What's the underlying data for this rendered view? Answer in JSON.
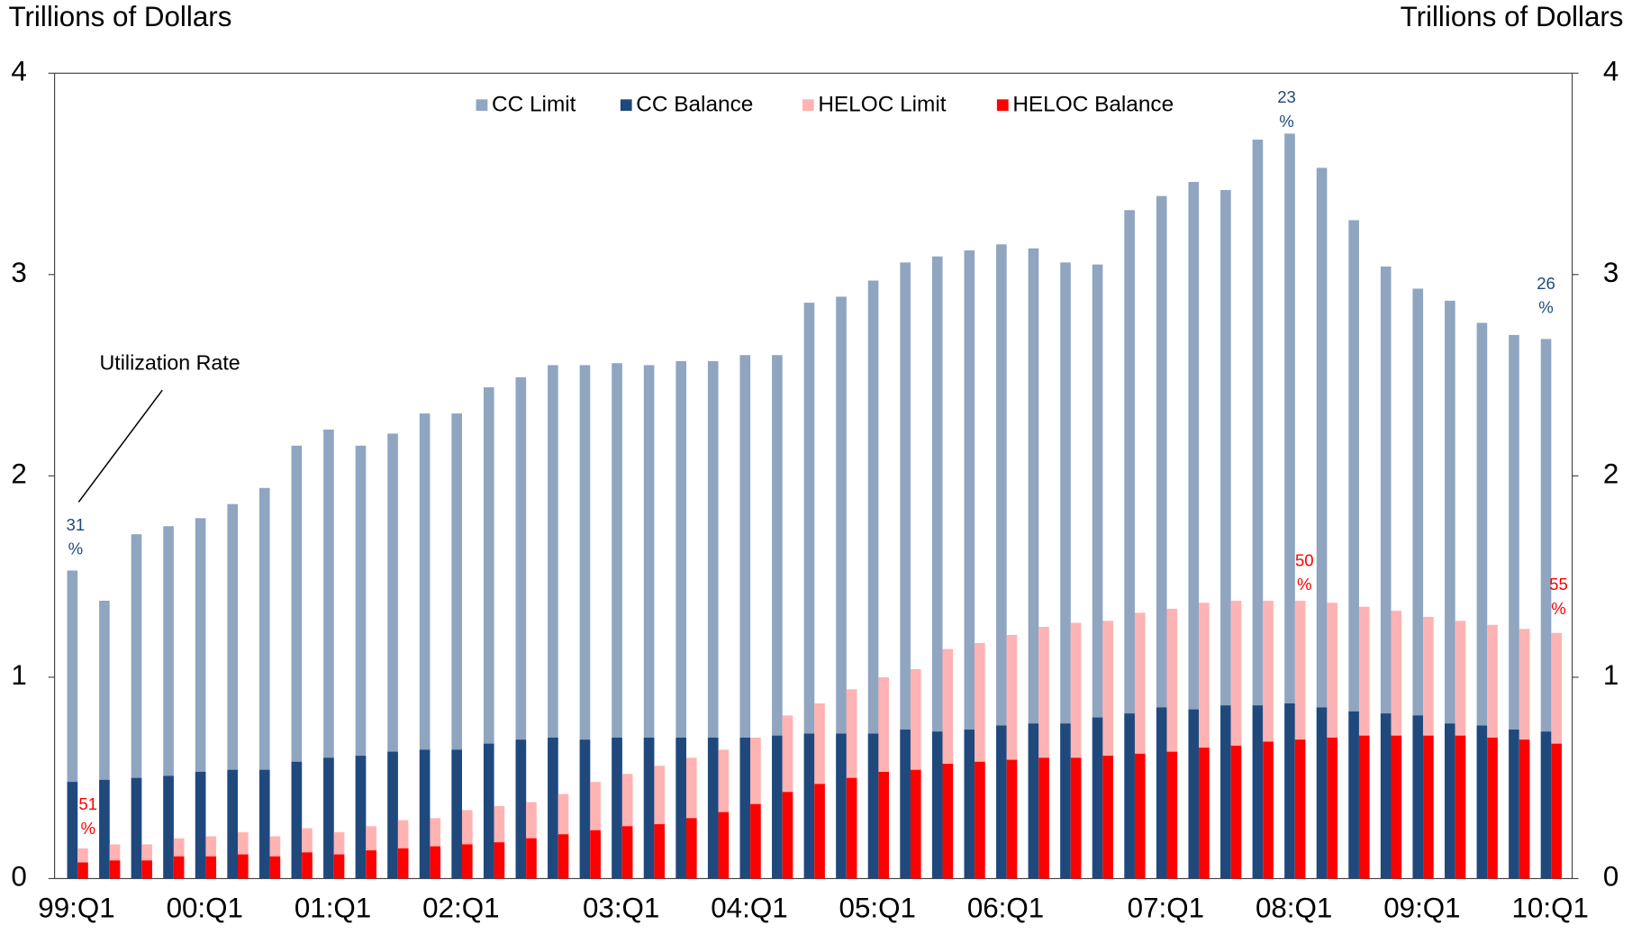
{
  "chart_data": {
    "type": "bar",
    "y_axis_label": "Trillions of Dollars",
    "y2_axis_label": "Trillions of Dollars",
    "categories": [
      "99:Q1",
      null,
      null,
      null,
      "00:Q1",
      null,
      null,
      null,
      "01:Q1",
      null,
      null,
      null,
      "02:Q1",
      null,
      null,
      null,
      null,
      "03:Q1",
      null,
      null,
      null,
      "04:Q1",
      null,
      null,
      null,
      "05:Q1",
      null,
      null,
      null,
      "06:Q1",
      null,
      null,
      null,
      null,
      "07:Q1",
      null,
      null,
      null,
      "08:Q1",
      null,
      null,
      null,
      "09:Q1",
      null,
      null,
      null,
      "10:Q1"
    ],
    "series": [
      {
        "name": "CC Limit",
        "color": "#8fa5c0",
        "values": [
          1.53,
          1.38,
          1.71,
          1.75,
          1.79,
          1.86,
          1.94,
          2.15,
          2.23,
          2.15,
          2.21,
          2.31,
          2.31,
          2.44,
          2.49,
          2.55,
          2.55,
          2.56,
          2.55,
          2.57,
          2.57,
          2.6,
          2.6,
          2.86,
          2.89,
          2.97,
          3.06,
          3.09,
          3.12,
          3.15,
          3.13,
          3.06,
          3.05,
          3.32,
          3.39,
          3.46,
          3.42,
          3.67,
          3.7,
          3.53,
          3.27,
          3.04,
          2.93,
          2.87,
          2.76,
          2.7,
          2.68
        ]
      },
      {
        "name": "CC Balance",
        "color": "#1f497d",
        "values": [
          0.48,
          0.49,
          0.5,
          0.51,
          0.53,
          0.54,
          0.54,
          0.58,
          0.6,
          0.61,
          0.63,
          0.64,
          0.64,
          0.67,
          0.69,
          0.7,
          0.69,
          0.7,
          0.7,
          0.7,
          0.7,
          0.7,
          0.71,
          0.72,
          0.72,
          0.72,
          0.74,
          0.73,
          0.74,
          0.76,
          0.77,
          0.77,
          0.8,
          0.82,
          0.85,
          0.84,
          0.86,
          0.86,
          0.87,
          0.85,
          0.83,
          0.82,
          0.81,
          0.77,
          0.76,
          0.74,
          0.73
        ]
      },
      {
        "name": "HELOC Limit",
        "color": "#ffb3b3",
        "values": [
          0.15,
          0.17,
          0.17,
          0.2,
          0.21,
          0.23,
          0.21,
          0.25,
          0.23,
          0.26,
          0.29,
          0.3,
          0.34,
          0.36,
          0.38,
          0.42,
          0.48,
          0.52,
          0.56,
          0.6,
          0.64,
          0.7,
          0.81,
          0.87,
          0.94,
          1.0,
          1.04,
          1.14,
          1.17,
          1.21,
          1.25,
          1.27,
          1.28,
          1.32,
          1.34,
          1.37,
          1.38,
          1.38,
          1.38,
          1.37,
          1.35,
          1.33,
          1.3,
          1.28,
          1.26,
          1.24,
          1.22
        ]
      },
      {
        "name": "HELOC Balance",
        "color": "#ff0000",
        "values": [
          0.08,
          0.09,
          0.09,
          0.11,
          0.11,
          0.12,
          0.11,
          0.13,
          0.12,
          0.14,
          0.15,
          0.16,
          0.17,
          0.18,
          0.2,
          0.22,
          0.24,
          0.26,
          0.27,
          0.3,
          0.33,
          0.37,
          0.43,
          0.47,
          0.5,
          0.53,
          0.54,
          0.57,
          0.58,
          0.59,
          0.6,
          0.6,
          0.61,
          0.62,
          0.63,
          0.65,
          0.66,
          0.68,
          0.69,
          0.7,
          0.71,
          0.71,
          0.71,
          0.71,
          0.7,
          0.69,
          0.67
        ]
      }
    ],
    "ylim": [
      0,
      4
    ],
    "yticks": [
      0,
      1,
      2,
      3,
      4
    ],
    "y2lim": [
      0,
      4
    ],
    "y2ticks": [
      0,
      1,
      2,
      3,
      4
    ],
    "legend": "top",
    "annotations": [
      {
        "lines": [
          "31",
          "%"
        ],
        "color": "#1f497d"
      },
      {
        "lines": [
          "51",
          "%"
        ],
        "color": "#ff0000"
      },
      {
        "lines": [
          "23",
          "%"
        ],
        "color": "#1f497d"
      },
      {
        "lines": [
          "50",
          "%"
        ],
        "color": "#ff0000"
      },
      {
        "lines": [
          "26",
          "%"
        ],
        "color": "#1f497d"
      },
      {
        "lines": [
          "55",
          "%"
        ],
        "color": "#ff0000"
      }
    ],
    "callout": "Utilization Rate"
  }
}
